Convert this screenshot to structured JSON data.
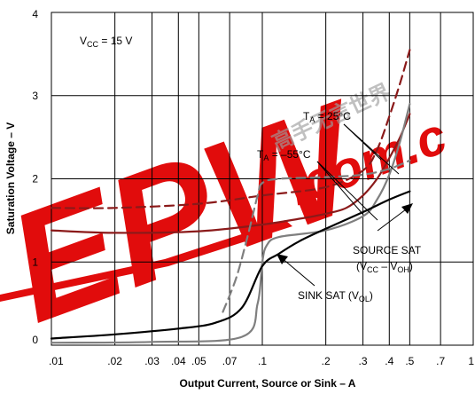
{
  "watermark": {
    "brand_text": "EPW",
    "suffix_text": ".com.c",
    "chinese_text": "高手无言世界",
    "red": "#e00000"
  },
  "chart_data": {
    "type": "line",
    "xscale": "log",
    "xlabel": "Output Current, Source or Sink – A",
    "ylabel": "Saturation Voltage – V",
    "xlim": [
      0.01,
      1
    ],
    "ylim": [
      0,
      4
    ],
    "x_tick_labels": [
      ".01",
      ".02",
      ".03",
      ".04",
      ".05",
      ".07",
      ".1",
      ".2",
      ".3",
      ".4",
      ".5",
      ".7",
      "1"
    ],
    "x_tick_values": [
      0.01,
      0.02,
      0.03,
      0.04,
      0.05,
      0.07,
      0.1,
      0.2,
      0.3,
      0.4,
      0.5,
      0.7,
      1
    ],
    "y_tick_labels": [
      "0",
      "1",
      "2",
      "3",
      "4"
    ],
    "y_tick_values": [
      0,
      1,
      2,
      3,
      4
    ],
    "grid": true,
    "annotations": {
      "vcc": {
        "main": "V",
        "sub": "CC",
        "rest": " = 15 V"
      },
      "ta25": {
        "main": "T",
        "sub": "A",
        "rest": " = 25°C"
      },
      "ta55": {
        "main": "T",
        "sub": "A",
        "rest": " = –55°C"
      },
      "source_line1": "SOURCE SAT",
      "source_line2": {
        "open": "(V",
        "sub1": "CC",
        "mid": " – V",
        "sub2": "OH",
        "close": ")"
      },
      "sink": {
        "main": "SINK SAT (V",
        "sub": "OL",
        "close": ")"
      }
    },
    "series": [
      {
        "group": "SOURCE SAT",
        "style": "solid",
        "color": "#8b1a1a",
        "x": [
          0.01,
          0.02,
          0.05,
          0.1,
          0.15,
          0.2,
          0.25,
          0.3,
          0.35,
          0.4,
          0.45,
          0.5
        ],
        "y": [
          1.38,
          1.35,
          1.37,
          1.45,
          1.52,
          1.58,
          1.65,
          1.8,
          2.0,
          2.25,
          2.5,
          2.78
        ]
      },
      {
        "group": "SOURCE SAT",
        "style": "dashed",
        "color": "#8b1a1a",
        "x": [
          0.01,
          0.02,
          0.05,
          0.1,
          0.2,
          0.3,
          0.35,
          0.4,
          0.45,
          0.5
        ],
        "y": [
          1.65,
          1.65,
          1.7,
          1.8,
          1.9,
          2.1,
          2.35,
          2.75,
          3.15,
          3.55
        ]
      },
      {
        "group": "SOURCE/SINK",
        "style": "solid",
        "color": "#7f7f7f",
        "x": [
          0.01,
          0.03,
          0.08,
          0.095,
          0.1,
          0.105,
          0.12,
          0.2,
          0.3,
          0.35,
          0.4,
          0.45,
          0.5
        ],
        "y": [
          0.03,
          0.04,
          0.1,
          0.5,
          1.0,
          1.2,
          1.3,
          1.38,
          1.55,
          1.75,
          2.05,
          2.45,
          2.9
        ]
      },
      {
        "group": "SOURCE/SINK",
        "style": "dashed",
        "color": "#7f7f7f",
        "x": [
          0.065,
          0.075,
          0.085,
          0.095,
          0.1,
          0.12,
          0.2,
          0.3,
          0.4,
          0.5
        ],
        "y": [
          0.4,
          0.8,
          1.3,
          1.8,
          1.95,
          2.0,
          2.02,
          2.05,
          2.12,
          2.22
        ]
      },
      {
        "group": "SINK SAT",
        "style": "solid",
        "color": "#000000",
        "x": [
          0.01,
          0.02,
          0.04,
          0.06,
          0.08,
          0.1,
          0.12,
          0.15,
          0.2,
          0.3,
          0.4,
          0.5
        ],
        "y": [
          0.08,
          0.13,
          0.2,
          0.27,
          0.45,
          0.95,
          1.1,
          1.25,
          1.4,
          1.6,
          1.75,
          1.85
        ]
      }
    ]
  }
}
